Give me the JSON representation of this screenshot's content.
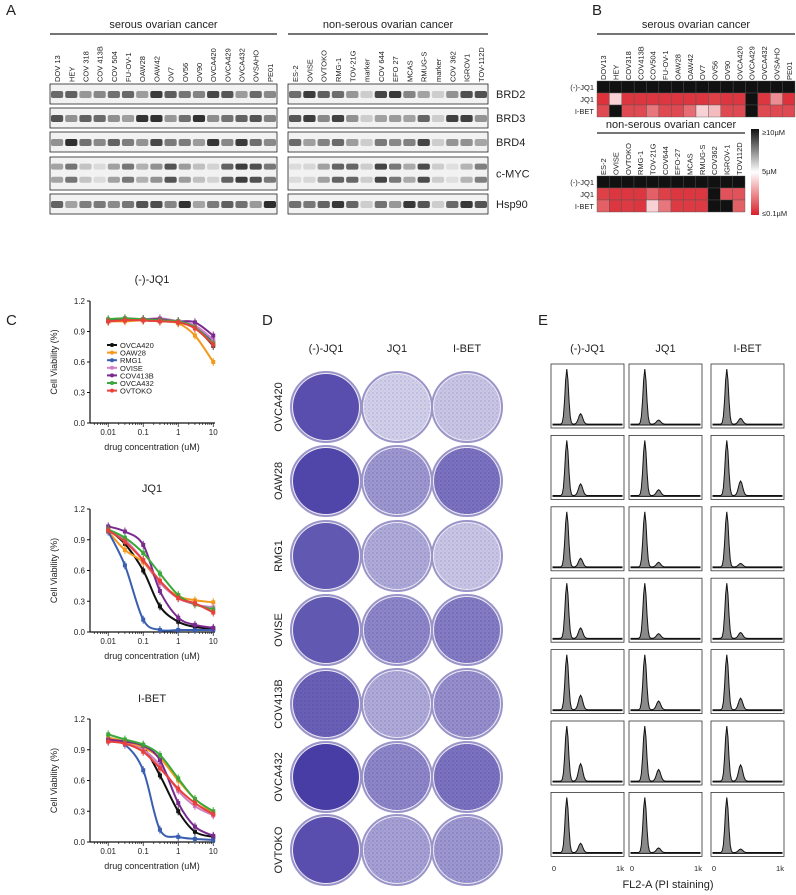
{
  "panels": {
    "a": "A",
    "b": "B",
    "c": "C",
    "d": "D",
    "e": "E"
  },
  "panel_a": {
    "groups": [
      {
        "title": "serous ovarian cancer",
        "lanes": [
          "DOV 13",
          "HEY",
          "COV 318",
          "COV 413B",
          "COV 504",
          "FU-OV-1",
          "OAW28",
          "OAW42",
          "OV7",
          "OV56",
          "OV90",
          "OVCA420",
          "OVCA429",
          "OVCA432",
          "OVSAHO",
          "PE01"
        ]
      },
      {
        "title": "non-serous ovarian cancer",
        "lanes": [
          "ES-2",
          "OVISE",
          "OVTOKO",
          "RMG-1",
          "TOV-21G",
          "marker",
          "COV 644",
          "EFO 27",
          "MCAS",
          "RMUG-S",
          "marker",
          "COV 362",
          "IGROV1",
          "TOV-112D"
        ]
      }
    ],
    "proteins": [
      "BRD2",
      "BRD3",
      "BRD4",
      "c-MYC",
      "Hsp90"
    ]
  },
  "panel_b": {
    "rows": [
      "(-)-JQ1",
      "JQ1",
      "I-BET"
    ],
    "colorbar": {
      "max_label": "≥10µM",
      "mid_label": "5µM",
      "min_label": "≤0.1µM",
      "colors": {
        "low": "#d8202a",
        "mid": "#ffffff",
        "high": "#111111"
      }
    },
    "groups": [
      {
        "title": "serous ovarian cancer",
        "columns": [
          "DOV13",
          "HEY",
          "COV318",
          "COV413B",
          "COV504",
          "FU-OV-1",
          "OAW28",
          "OAW42",
          "OV7",
          "OV56",
          "OV90",
          "OVCA420",
          "OVCA429",
          "OVCA432",
          "OVSAHO",
          "PE01"
        ],
        "values_uM": [
          [
            10,
            10,
            10,
            10,
            10,
            10,
            10,
            10,
            10,
            10,
            10,
            10,
            10,
            10,
            10,
            10
          ],
          [
            0.5,
            4,
            0.6,
            0.6,
            0.6,
            0.6,
            0.6,
            0.6,
            0.6,
            0.8,
            0.6,
            0.6,
            10,
            0.6,
            2.5,
            0.5
          ],
          [
            1,
            10,
            1,
            1,
            2,
            1,
            1,
            1.8,
            4,
            3.5,
            1,
            1,
            10,
            1,
            1,
            1
          ]
        ]
      },
      {
        "title": "non-serous ovarian cancer",
        "columns": [
          "ES-2",
          "OVISE",
          "OVTOKO",
          "RMG-1",
          "TOV-21G",
          "COV644",
          "EFO-27",
          "MCAS",
          "RMUG-S",
          "COV362",
          "IGROV-1",
          "TOV112D"
        ],
        "values_uM": [
          [
            10,
            10,
            10,
            10,
            10,
            10,
            10,
            10,
            10,
            10,
            10,
            10
          ],
          [
            0.8,
            0.6,
            0.6,
            0.6,
            1.5,
            0.8,
            0.6,
            0.6,
            0.6,
            10,
            1.2,
            1.2
          ],
          [
            1.5,
            0.6,
            0.7,
            0.6,
            4,
            2,
            0.7,
            0.7,
            0.7,
            10,
            10,
            1.5
          ]
        ]
      }
    ]
  },
  "chart_data": [
    {
      "type": "line",
      "title": "(-)-JQ1",
      "xlabel": "drug concentration (uM)",
      "ylabel": "Cell Viability (%)",
      "xscale": "log",
      "xticks": [
        "0.01",
        "0.1",
        "1",
        "10"
      ],
      "yticks": [
        "0.0",
        "0.3",
        "0.6",
        "0.9",
        "1.2"
      ],
      "ylim": [
        0,
        1.2
      ],
      "legend": "inside-lower-left",
      "x": [
        0.01,
        0.03,
        0.1,
        0.3,
        1,
        3,
        10
      ],
      "series": [
        {
          "name": "OVCA420",
          "color": "#111111",
          "values": [
            1.0,
            1.01,
            1.01,
            1.0,
            0.99,
            0.94,
            0.76
          ]
        },
        {
          "name": "OAW28",
          "color": "#f39a1e",
          "values": [
            1.0,
            1.0,
            1.01,
            1.0,
            0.98,
            0.86,
            0.6
          ]
        },
        {
          "name": "RMG1",
          "color": "#3a5fb0",
          "values": [
            1.01,
            1.02,
            1.02,
            1.01,
            1.0,
            0.95,
            0.8
          ]
        },
        {
          "name": "OVISE",
          "color": "#d07fc4",
          "values": [
            1.01,
            1.03,
            1.02,
            1.03,
            1.0,
            0.96,
            0.82
          ]
        },
        {
          "name": "COV413B",
          "color": "#7a2a8e",
          "values": [
            1.01,
            1.02,
            1.02,
            1.02,
            1.0,
            0.99,
            0.86
          ]
        },
        {
          "name": "OVCA432",
          "color": "#3aa83a",
          "values": [
            1.02,
            1.03,
            1.02,
            1.01,
            1.0,
            0.94,
            0.78
          ]
        },
        {
          "name": "OVTOKO",
          "color": "#e8403a",
          "values": [
            1.0,
            1.01,
            1.01,
            1.0,
            0.99,
            0.93,
            0.77
          ]
        }
      ]
    },
    {
      "type": "line",
      "title": "JQ1",
      "xlabel": "drug concentration (uM)",
      "ylabel": "Cell Viability (%)",
      "xscale": "log",
      "xticks": [
        "0.01",
        "0.1",
        "1",
        "10"
      ],
      "yticks": [
        "0.0",
        "0.3",
        "0.6",
        "0.9",
        "1.2"
      ],
      "ylim": [
        0,
        1.2
      ],
      "x": [
        0.01,
        0.03,
        0.1,
        0.3,
        1,
        3,
        10
      ],
      "series": [
        {
          "name": "OVCA420",
          "color": "#111111",
          "values": [
            1.0,
            0.86,
            0.6,
            0.25,
            0.1,
            0.05,
            0.03
          ]
        },
        {
          "name": "OAW28",
          "color": "#f39a1e",
          "values": [
            0.98,
            0.8,
            0.68,
            0.48,
            0.35,
            0.31,
            0.29
          ]
        },
        {
          "name": "RMG1",
          "color": "#3a5fb0",
          "values": [
            0.98,
            0.65,
            0.12,
            0.02,
            0.02,
            0.02,
            0.02
          ]
        },
        {
          "name": "OVISE",
          "color": "#d07fc4",
          "values": [
            1.0,
            0.9,
            0.7,
            0.48,
            0.33,
            0.27,
            0.24
          ]
        },
        {
          "name": "COV413B",
          "color": "#7a2a8e",
          "values": [
            1.03,
            0.98,
            0.85,
            0.4,
            0.14,
            0.07,
            0.04
          ]
        },
        {
          "name": "OVCA432",
          "color": "#3aa83a",
          "values": [
            1.0,
            0.92,
            0.77,
            0.57,
            0.36,
            0.27,
            0.22
          ]
        },
        {
          "name": "OVTOKO",
          "color": "#e8403a",
          "values": [
            0.99,
            0.88,
            0.7,
            0.5,
            0.33,
            0.28,
            0.19
          ]
        }
      ]
    },
    {
      "type": "line",
      "title": "I-BET",
      "xlabel": "drug concentration (uM)",
      "ylabel": "Cell Viability (%)",
      "xscale": "log",
      "xticks": [
        "0.01",
        "0.1",
        "1",
        "10"
      ],
      "yticks": [
        "0.0",
        "0.3",
        "0.6",
        "0.9",
        "1.2"
      ],
      "ylim": [
        0,
        1.2
      ],
      "x": [
        0.01,
        0.03,
        0.1,
        0.3,
        1,
        3,
        10
      ],
      "series": [
        {
          "name": "OVCA420",
          "color": "#111111",
          "values": [
            1.0,
            0.98,
            0.92,
            0.65,
            0.3,
            0.1,
            0.05
          ]
        },
        {
          "name": "OAW28",
          "color": "#f39a1e",
          "values": [
            1.02,
            0.98,
            0.92,
            0.82,
            0.6,
            0.42,
            0.28
          ]
        },
        {
          "name": "RMG1",
          "color": "#3a5fb0",
          "values": [
            0.98,
            0.95,
            0.7,
            0.12,
            0.05,
            0.03,
            0.02
          ]
        },
        {
          "name": "OVISE",
          "color": "#d07fc4",
          "values": [
            1.0,
            0.96,
            0.9,
            0.75,
            0.5,
            0.35,
            0.26
          ]
        },
        {
          "name": "COV413B",
          "color": "#7a2a8e",
          "values": [
            1.0,
            0.98,
            0.94,
            0.8,
            0.38,
            0.15,
            0.06
          ]
        },
        {
          "name": "OVCA432",
          "color": "#3aa83a",
          "values": [
            1.05,
            1.0,
            0.95,
            0.85,
            0.62,
            0.42,
            0.3
          ]
        },
        {
          "name": "OVTOKO",
          "color": "#e8403a",
          "values": [
            0.98,
            0.96,
            0.88,
            0.72,
            0.52,
            0.38,
            0.27
          ]
        }
      ]
    }
  ],
  "panel_d": {
    "columns": [
      "(-)-JQ1",
      "JQ1",
      "I-BET"
    ],
    "rows": [
      "OVCA420",
      "OAW28",
      "RMG1",
      "OVISE",
      "COV413B",
      "OVCA432",
      "OVTOKO"
    ],
    "stain_color": "#3f33a0",
    "stain_density": [
      [
        0.85,
        0.15,
        0.2
      ],
      [
        0.9,
        0.45,
        0.65
      ],
      [
        0.8,
        0.35,
        0.2
      ],
      [
        0.8,
        0.55,
        0.6
      ],
      [
        0.75,
        0.35,
        0.5
      ],
      [
        0.95,
        0.55,
        0.65
      ],
      [
        0.85,
        0.4,
        0.45
      ]
    ]
  },
  "panel_e": {
    "columns": [
      "(-)-JQ1",
      "JQ1",
      "I-BET"
    ],
    "x_ticks": [
      "0",
      "1k"
    ],
    "xlabel": "FL2-A (PI staining)",
    "g2_relative_height": [
      [
        0.18,
        0.07,
        0.1
      ],
      [
        0.2,
        0.1,
        0.25
      ],
      [
        0.15,
        0.08,
        0.06
      ],
      [
        0.18,
        0.08,
        0.1
      ],
      [
        0.25,
        0.15,
        0.2
      ],
      [
        0.3,
        0.2,
        0.28
      ],
      [
        0.16,
        0.08,
        0.06
      ]
    ]
  }
}
